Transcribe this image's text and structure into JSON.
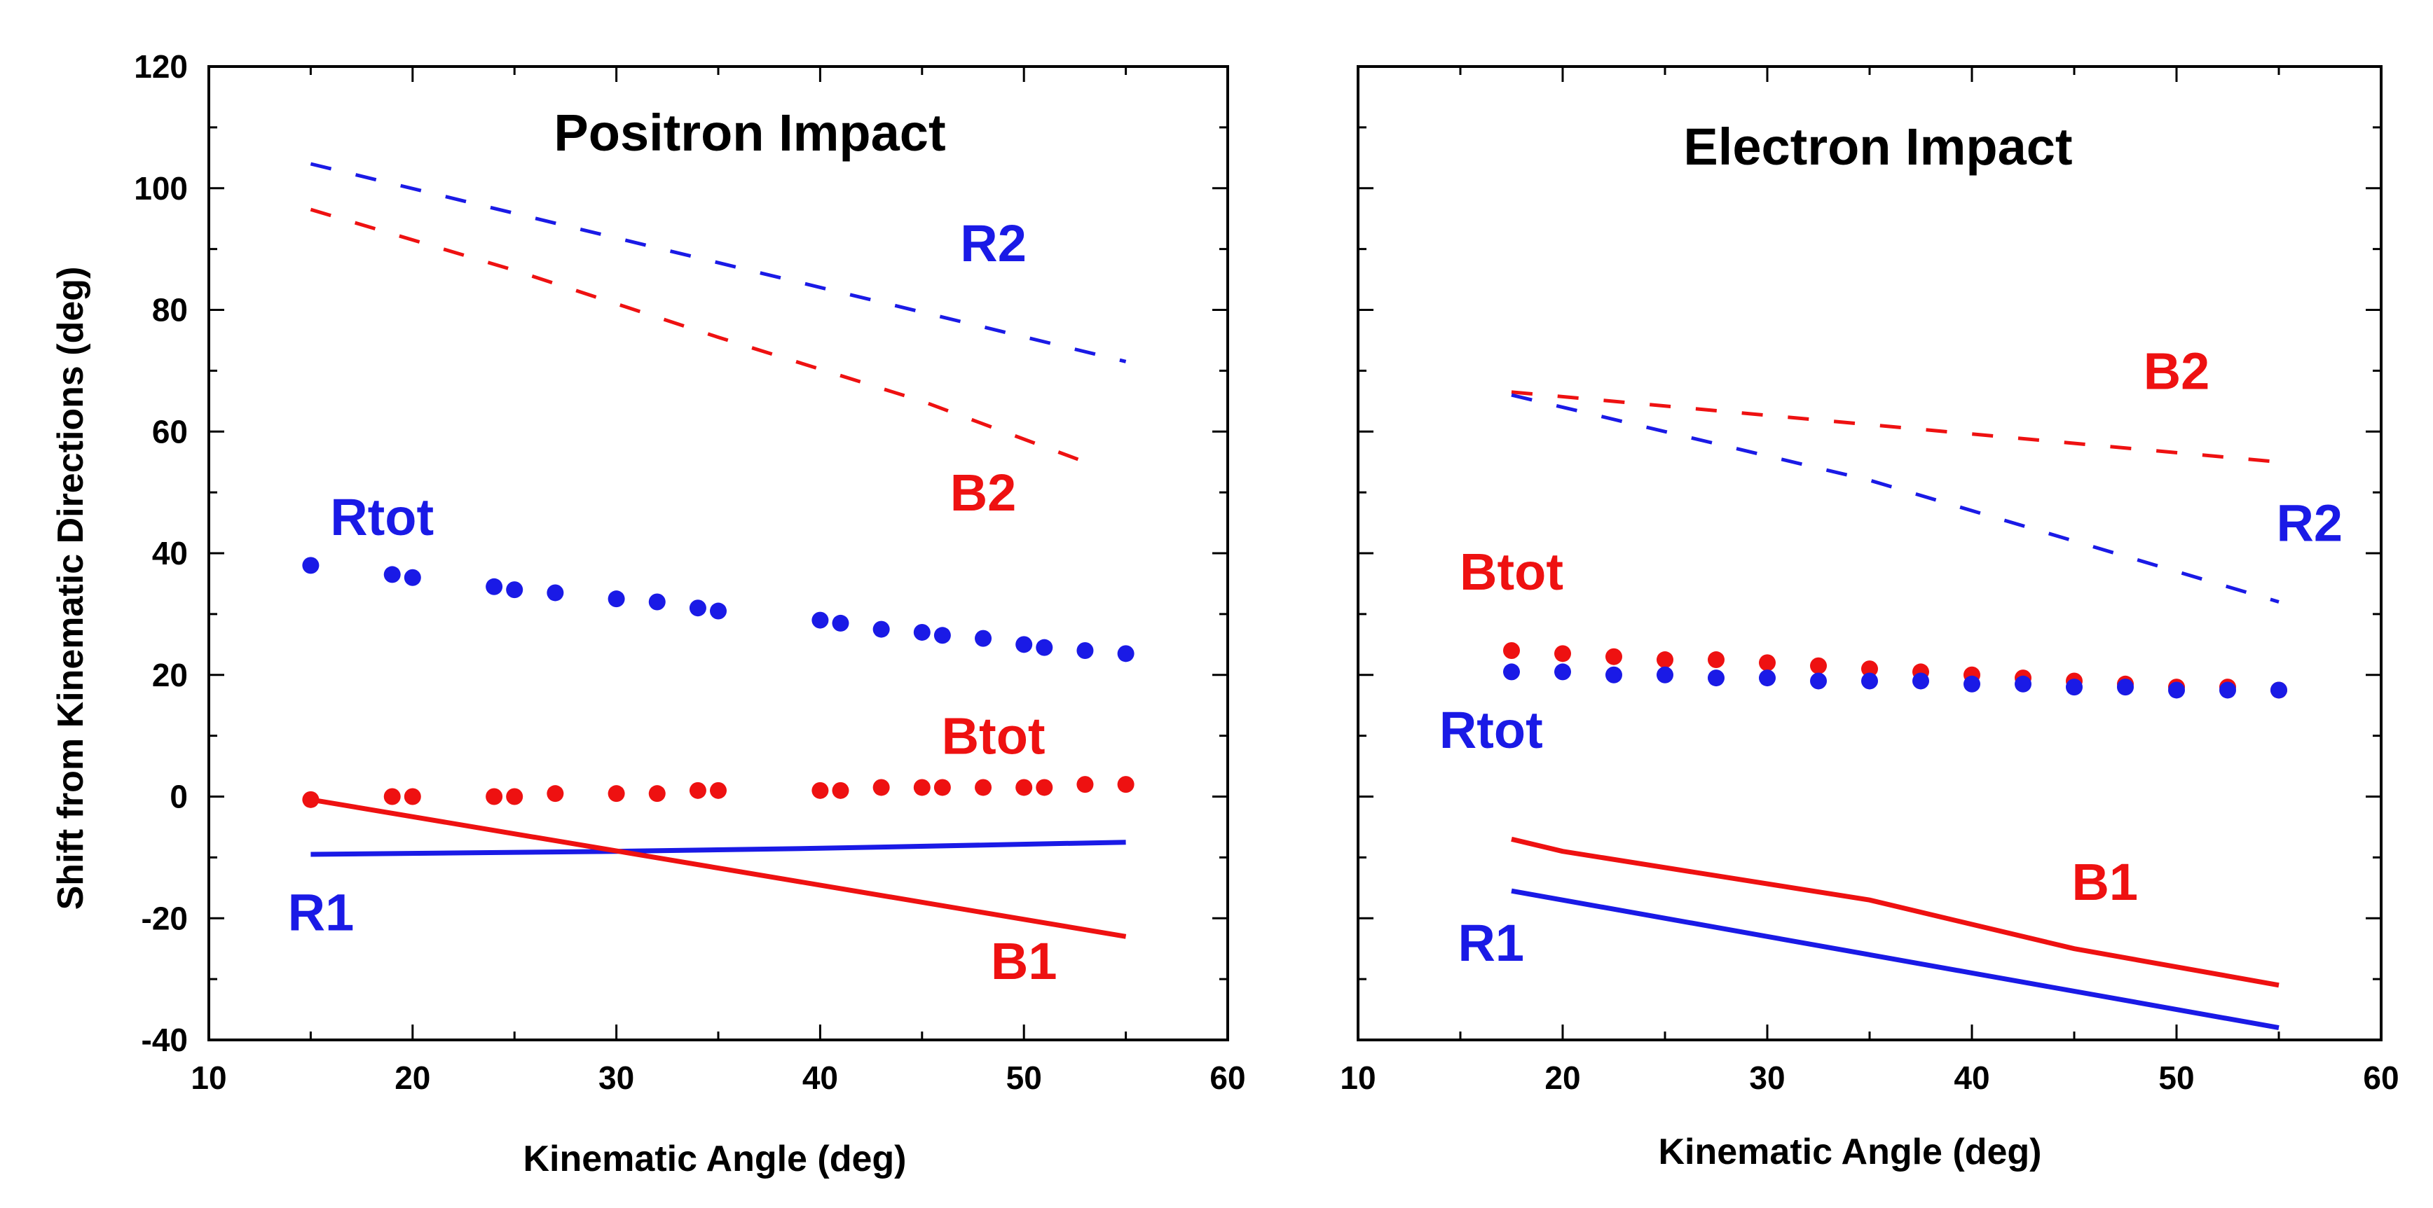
{
  "colors": {
    "red": "#ee1111",
    "blue": "#1a1ae6",
    "axis": "#000000"
  },
  "chart_data": [
    {
      "type": "line",
      "title": "Positron Impact",
      "xlabel": "Kinematic Angle (deg)",
      "ylabel": "Shift from Kinematic Directions (deg)",
      "xlim": [
        10,
        60
      ],
      "ylim": [
        -40,
        120
      ],
      "xticks": [
        "10",
        "20",
        "30",
        "40",
        "50",
        "60"
      ],
      "yticks": [
        "-40",
        "-20",
        "0",
        "20",
        "40",
        "60",
        "80",
        "100",
        "120"
      ],
      "series": [
        {
          "name": "R2",
          "color": "blue",
          "style": "dashed",
          "x": [
            15,
            55
          ],
          "y": [
            104,
            71.5
          ]
        },
        {
          "name": "B2",
          "color": "red",
          "style": "dashed",
          "x": [
            15,
            25,
            35,
            45,
            53
          ],
          "y": [
            96.5,
            86.5,
            75.5,
            65,
            55
          ]
        },
        {
          "name": "Rtot",
          "color": "blue",
          "style": "markers",
          "x": [
            15,
            19,
            20,
            24,
            25,
            27,
            30,
            32,
            34,
            35,
            40,
            41,
            43,
            45,
            46,
            48,
            50,
            51,
            53,
            55
          ],
          "y": [
            38,
            36.5,
            36,
            34.5,
            34,
            33.5,
            32.5,
            32,
            31,
            30.5,
            29,
            28.5,
            27.5,
            27,
            26.5,
            26,
            25,
            24.5,
            24,
            23.5
          ]
        },
        {
          "name": "Btot",
          "color": "red",
          "style": "markers",
          "x": [
            15,
            19,
            20,
            24,
            25,
            27,
            30,
            32,
            34,
            35,
            40,
            41,
            43,
            45,
            46,
            48,
            50,
            51,
            53,
            55
          ],
          "y": [
            -0.5,
            0,
            0,
            0,
            0,
            0.5,
            0.5,
            0.5,
            1,
            1,
            1,
            1,
            1.5,
            1.5,
            1.5,
            1.5,
            1.5,
            1.5,
            2,
            2
          ]
        },
        {
          "name": "R1",
          "color": "blue",
          "style": "solid",
          "x": [
            15,
            30,
            40,
            55
          ],
          "y": [
            -9.5,
            -9,
            -8.5,
            -7.5
          ]
        },
        {
          "name": "B1",
          "color": "red",
          "style": "solid",
          "x": [
            15,
            55
          ],
          "y": [
            -0.5,
            -23
          ]
        }
      ],
      "labels": [
        {
          "text": "R2",
          "color": "blue",
          "x": 48.5,
          "y": 88
        },
        {
          "text": "B2",
          "color": "red",
          "x": 48,
          "y": 47
        },
        {
          "text": "Rtot",
          "color": "blue",
          "x": 18.5,
          "y": 43
        },
        {
          "text": "Btot",
          "color": "red",
          "x": 48.5,
          "y": 7
        },
        {
          "text": "R1",
          "color": "blue",
          "x": 15.5,
          "y": -22
        },
        {
          "text": "B1",
          "color": "red",
          "x": 50,
          "y": -30
        }
      ]
    },
    {
      "type": "line",
      "title": "Electron Impact",
      "xlabel": "Kinematic Angle (deg)",
      "ylabel": "",
      "xlim": [
        10,
        60
      ],
      "ylim": [
        -40,
        120
      ],
      "xticks": [
        "10",
        "20",
        "30",
        "40",
        "50",
        "60"
      ],
      "yticks": [],
      "series": [
        {
          "name": "B2",
          "color": "red",
          "style": "dashed",
          "x": [
            17.5,
            55
          ],
          "y": [
            66.5,
            55
          ]
        },
        {
          "name": "R2",
          "color": "blue",
          "style": "dashed",
          "x": [
            17.5,
            25,
            35,
            45,
            55
          ],
          "y": [
            66,
            60,
            52,
            42,
            32
          ]
        },
        {
          "name": "Btot",
          "color": "red",
          "style": "markers",
          "x": [
            17.5,
            20,
            22.5,
            25,
            27.5,
            30,
            32.5,
            35,
            37.5,
            40,
            42.5,
            45,
            47.5,
            50,
            52.5,
            55
          ],
          "y": [
            24,
            23.5,
            23,
            22.5,
            22.5,
            22,
            21.5,
            21,
            20.5,
            20,
            19.5,
            19,
            18.5,
            18,
            18,
            17.5
          ]
        },
        {
          "name": "Rtot",
          "color": "blue",
          "style": "markers",
          "x": [
            17.5,
            20,
            22.5,
            25,
            27.5,
            30,
            32.5,
            35,
            37.5,
            40,
            42.5,
            45,
            47.5,
            50,
            52.5,
            55
          ],
          "y": [
            20.5,
            20.5,
            20,
            20,
            19.5,
            19.5,
            19,
            19,
            19,
            18.5,
            18.5,
            18,
            18,
            17.5,
            17.5,
            17.5
          ]
        },
        {
          "name": "B1",
          "color": "red",
          "style": "solid",
          "x": [
            17.5,
            20,
            35,
            45,
            55
          ],
          "y": [
            -7,
            -9,
            -17,
            -25,
            -31
          ]
        },
        {
          "name": "R1",
          "color": "blue",
          "style": "solid",
          "x": [
            17.5,
            30,
            40,
            55
          ],
          "y": [
            -15.5,
            -23,
            -29,
            -38
          ]
        }
      ],
      "labels": [
        {
          "text": "B2",
          "color": "red",
          "x": 50,
          "y": 67
        },
        {
          "text": "R2",
          "color": "blue",
          "x": 56.5,
          "y": 42
        },
        {
          "text": "Btot",
          "color": "red",
          "x": 17.5,
          "y": 34
        },
        {
          "text": "Rtot",
          "color": "blue",
          "x": 16.5,
          "y": 8
        },
        {
          "text": "B1",
          "color": "red",
          "x": 46.5,
          "y": -17
        },
        {
          "text": "R1",
          "color": "blue",
          "x": 16.5,
          "y": -27
        }
      ]
    }
  ]
}
